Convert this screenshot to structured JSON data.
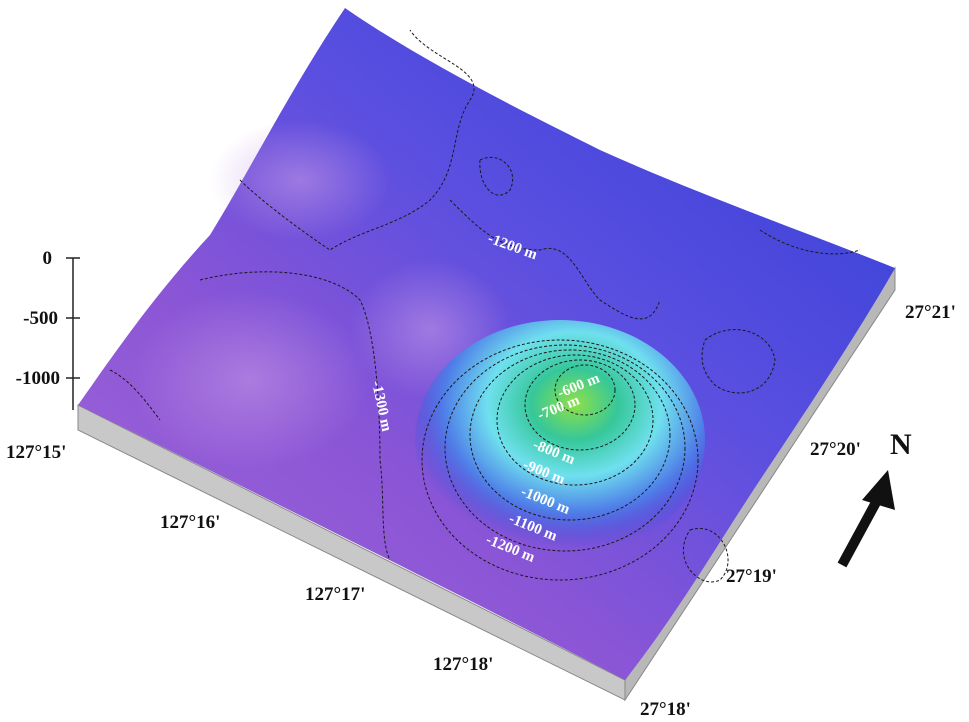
{
  "depth_axis": {
    "ticks": [
      {
        "label": "0"
      },
      {
        "label": "-500"
      },
      {
        "label": "-1000"
      }
    ]
  },
  "longitude_labels": [
    "127°15'",
    "127°16'",
    "127°17'",
    "127°18'"
  ],
  "latitude_labels": [
    "27°21'",
    "27°20'",
    "27°19'",
    "27°18'"
  ],
  "contour_labels": {
    "m600": "-600 m",
    "m700": "-700 m",
    "m800": "-800 m",
    "m900": "-900 m",
    "m1000": "-1000 m",
    "m1100": "-1100 m",
    "m1200_seamount": "-1200 m",
    "m1200_north": "-1200 m",
    "m1300": "-1300 m"
  },
  "north_arrow": {
    "label": "N"
  },
  "colors": {
    "deep": "#8a4fd0",
    "mid": "#4a4de0",
    "shallow_blue": "#2b3fd8",
    "cyan": "#7fe6f0",
    "green": "#6fd84a",
    "base": "#c9c9c9"
  }
}
